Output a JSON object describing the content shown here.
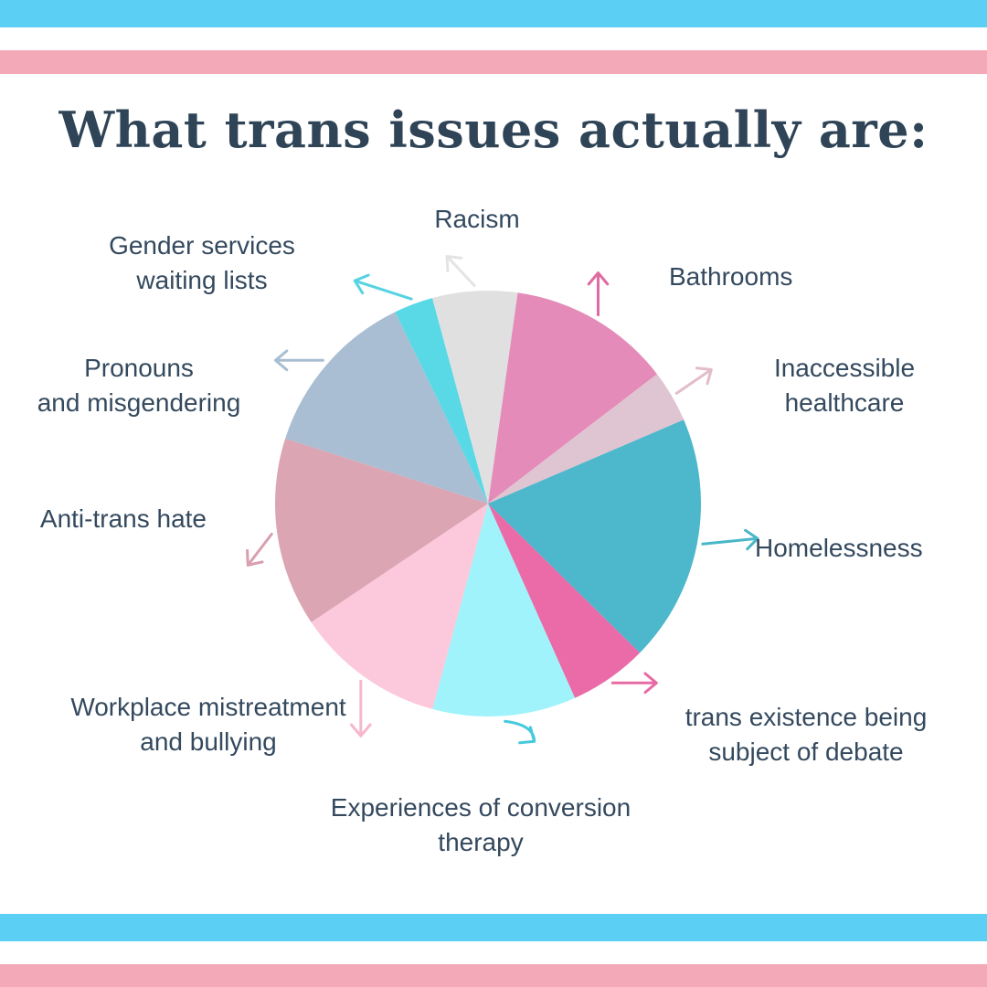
{
  "colors": {
    "stripe_blue": "#5ccff5",
    "stripe_pink": "#f4a9b8",
    "title": "#2f4457",
    "label": "#34495e"
  },
  "chart_data": {
    "type": "pie",
    "title": "What trans issues actually are:",
    "legend": "none",
    "slices": [
      {
        "lines": [
          "Racism"
        ],
        "value": 12.5,
        "color": "#e58bb9",
        "arrow_color": "#e06aa1"
      },
      {
        "lines": [
          "Bathrooms"
        ],
        "value": 4.0,
        "color": "#dfc4d1",
        "arrow_color": "#e3bccb"
      },
      {
        "lines": [
          "Inaccessible",
          "healthcare"
        ],
        "value": 19.0,
        "color": "#4db7cb",
        "arrow_color": "#49b7c7"
      },
      {
        "lines": [
          "Homelessness"
        ],
        "value": 6.0,
        "color": "#eb6aa8",
        "arrow_color": "#e86aa5"
      },
      {
        "lines": [
          "trans existence being",
          "subject of debate"
        ],
        "value": 11.0,
        "color": "#a0f3fa",
        "arrow_color": "#45c9dc"
      },
      {
        "lines": [
          "Experiences of conversion",
          "therapy"
        ],
        "value": 11.5,
        "color": "#fcc9dc",
        "arrow_color": "#f6b7cc"
      },
      {
        "lines": [
          "Workplace mistreatment",
          "and bullying"
        ],
        "value": 14.5,
        "color": "#dba5b3",
        "arrow_color": "#d99fae"
      },
      {
        "lines": [
          "Anti-trans hate"
        ],
        "value": 13.0,
        "color": "#a9bed3",
        "arrow_color": "#a9bed3"
      },
      {
        "lines": [
          "Pronouns",
          "and misgendering"
        ],
        "value": 3.0,
        "color": "#59d8e6",
        "arrow_color": "#56d3e3"
      },
      {
        "lines": [
          "Gender services",
          "waiting lists"
        ],
        "value": 6.5,
        "color": "#e0e0e0",
        "arrow_color": "#e4e4e4"
      }
    ]
  }
}
